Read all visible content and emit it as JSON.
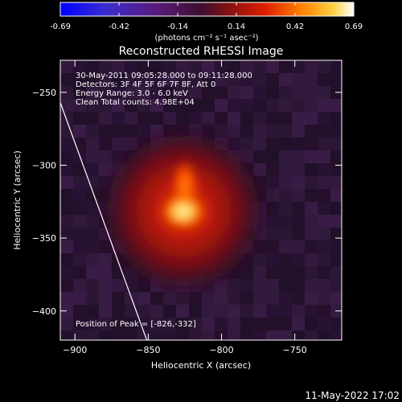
{
  "chart_data": {
    "type": "heatmap",
    "title": "Reconstructed RHESSI Image",
    "colorbar": {
      "ticks": [
        "-0.69",
        "-0.42",
        "-0.14",
        "0.14",
        "0.42",
        "0.69"
      ],
      "range": [
        -0.69,
        0.69
      ],
      "unit_label": "(photons cm⁻² s⁻¹ asec⁻²)",
      "colormap": [
        "#0000ff",
        "#3a2dd0",
        "#5a1a7a",
        "#3c0f30",
        "#8a1010",
        "#e02000",
        "#ff8000",
        "#ffd040",
        "#ffffff"
      ]
    },
    "xlabel": "Heliocentric X (arcsec)",
    "ylabel": "Heliocentric Y (arcsec)",
    "xlim": [
      -910,
      -718
    ],
    "ylim": [
      -420,
      -228
    ],
    "xticks": [
      -900,
      -850,
      -800,
      -750
    ],
    "yticks": [
      -250,
      -300,
      -350,
      -400
    ],
    "xtick_labels": [
      "−900",
      "−850",
      "−800",
      "−750"
    ],
    "ytick_labels": [
      "−250",
      "−300",
      "−350",
      "−400"
    ],
    "info_lines": [
      "30-May-2011 09:05:28.000 to 09:11:28.000",
      "Detectors: 3F 4F 5F 6F 7F 8F, Att 0",
      "Energy Range: 3.0 - 6.0 keV",
      "Clean    Total counts: 4.98E+04"
    ],
    "peak_label": "Position of Peak = [-826,-332]",
    "peak": {
      "x": -826,
      "y": -332
    },
    "limb_line": {
      "x1": -910,
      "y1": -257,
      "x2": -851,
      "y2": -420
    }
  },
  "footer": {
    "timestamp": "11-May-2022 17:02"
  }
}
